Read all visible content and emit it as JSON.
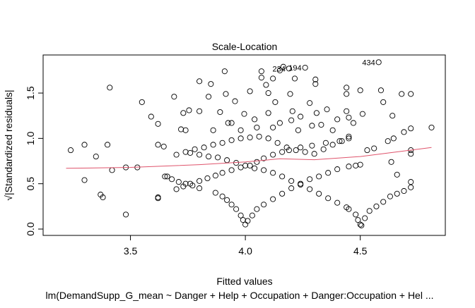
{
  "chart_data": {
    "type": "scatter",
    "title": "Scale-Location",
    "xlabel": "Fitted values",
    "ylabel": "√|Standardized residuals|",
    "subtitle": "lm(DemandSupp_G_mean ~ Danger + Help + Occupation + Danger:Occupation + Hel ...",
    "xlim": [
      3.12,
      4.87
    ],
    "ylim": [
      -0.07,
      1.92
    ],
    "xticks": [
      {
        "value": 3.5,
        "label": "3.5"
      },
      {
        "value": 4.0,
        "label": "4.0"
      },
      {
        "value": 4.5,
        "label": "4.5"
      }
    ],
    "yticks": [
      {
        "value": 0.0,
        "label": "0.0"
      },
      {
        "value": 0.5,
        "label": "0.5"
      },
      {
        "value": 1.0,
        "label": "1.0"
      },
      {
        "value": 1.5,
        "label": "1.5"
      }
    ],
    "grid": false,
    "smooth_color": "#DF536B",
    "smooth_line": [
      [
        3.22,
        0.67
      ],
      [
        3.5,
        0.68
      ],
      [
        3.8,
        0.71
      ],
      [
        4.0,
        0.74
      ],
      [
        4.15,
        0.775
      ],
      [
        4.3,
        0.765
      ],
      [
        4.5,
        0.8
      ],
      [
        4.81,
        0.9
      ]
    ],
    "labeled_points": [
      {
        "label": "234",
        "x": 4.19,
        "y": 1.77
      },
      {
        "label": "194",
        "x": 4.26,
        "y": 1.78
      },
      {
        "label": "434",
        "x": 4.58,
        "y": 1.84
      }
    ],
    "points": [
      [
        3.24,
        0.87
      ],
      [
        3.3,
        0.93
      ],
      [
        3.3,
        0.54
      ],
      [
        3.35,
        0.8
      ],
      [
        3.37,
        0.38
      ],
      [
        3.38,
        0.35
      ],
      [
        3.4,
        0.93
      ],
      [
        3.41,
        1.56
      ],
      [
        3.42,
        0.65
      ],
      [
        3.48,
        0.68
      ],
      [
        3.48,
        0.16
      ],
      [
        3.53,
        0.68
      ],
      [
        3.55,
        1.4
      ],
      [
        3.59,
        1.24
      ],
      [
        3.62,
        0.93
      ],
      [
        3.62,
        1.16
      ],
      [
        3.62,
        0.35
      ],
      [
        3.62,
        0.34
      ],
      [
        3.645,
        0.91
      ],
      [
        3.66,
        0.58
      ],
      [
        3.72,
        1.1
      ],
      [
        3.74,
        1.09
      ],
      [
        3.69,
        1.46
      ],
      [
        3.73,
        1.28
      ],
      [
        3.755,
        1.31
      ],
      [
        3.8,
        1.63
      ],
      [
        3.8,
        1.3
      ],
      [
        3.84,
        1.46
      ],
      [
        3.85,
        1.6
      ],
      [
        3.89,
        1.29
      ],
      [
        3.91,
        1.74
      ],
      [
        3.915,
        1.49
      ],
      [
        3.925,
        1.17
      ],
      [
        3.955,
        1.41
      ],
      [
        3.995,
        1.27
      ],
      [
        4.02,
        1.52
      ],
      [
        4.07,
        1.74
      ],
      [
        4.07,
        1.67
      ],
      [
        4.09,
        1.59
      ],
      [
        4.1,
        1.5
      ],
      [
        4.12,
        1.66
      ],
      [
        4.1,
        1.28
      ],
      [
        4.13,
        1.4
      ],
      [
        4.15,
        1.75
      ],
      [
        4.165,
        1.79
      ],
      [
        4.195,
        1.49
      ],
      [
        4.205,
        1.3
      ],
      [
        4.215,
        1.66
      ],
      [
        4.24,
        1.24
      ],
      [
        4.28,
        1.39
      ],
      [
        4.305,
        1.65
      ],
      [
        4.305,
        1.6
      ],
      [
        4.31,
        1.28
      ],
      [
        4.355,
        1.32
      ],
      [
        4.44,
        1.56
      ],
      [
        4.44,
        1.49
      ],
      [
        4.44,
        1.3
      ],
      [
        4.5,
        1.53
      ],
      [
        4.51,
        1.27
      ],
      [
        4.59,
        1.53
      ],
      [
        4.6,
        1.4
      ],
      [
        4.64,
        1.25
      ],
      [
        4.68,
        1.49
      ],
      [
        4.72,
        1.49
      ],
      [
        4.72,
        1.11
      ],
      [
        4.69,
        1.07
      ],
      [
        4.81,
        1.12
      ],
      [
        4.62,
        0.97
      ],
      [
        4.645,
        1.0
      ],
      [
        4.635,
        0.74
      ],
      [
        4.66,
        0.6
      ],
      [
        4.72,
        0.87
      ],
      [
        4.72,
        0.83
      ],
      [
        4.53,
        0.87
      ],
      [
        4.56,
        0.89
      ],
      [
        4.15,
        1.17
      ],
      [
        4.04,
        1.21
      ],
      [
        3.98,
        1.09
      ],
      [
        3.86,
        1.09
      ],
      [
        4.23,
        1.09
      ],
      [
        4.38,
        1.09
      ],
      [
        4.47,
        1.17
      ],
      [
        4.4,
        1.21
      ],
      [
        4.29,
        1.14
      ],
      [
        3.94,
        1.17
      ],
      [
        4.12,
        1.12
      ],
      [
        4.33,
        1.15
      ],
      [
        4.45,
        1.23
      ],
      [
        4.2,
        1.2
      ],
      [
        4.05,
        1.12
      ],
      [
        3.7,
        0.82
      ],
      [
        3.74,
        0.85
      ],
      [
        3.78,
        0.88
      ],
      [
        3.82,
        0.9
      ],
      [
        3.86,
        0.93
      ],
      [
        3.9,
        0.95
      ],
      [
        3.94,
        0.98
      ],
      [
        3.98,
        1.0
      ],
      [
        4.02,
        1.01
      ],
      [
        4.06,
        1.02
      ],
      [
        4.1,
        1.0
      ],
      [
        4.14,
        0.95
      ],
      [
        4.18,
        0.9
      ],
      [
        4.22,
        0.87
      ],
      [
        4.26,
        0.85
      ],
      [
        4.3,
        0.83
      ],
      [
        4.34,
        0.88
      ],
      [
        4.38,
        0.93
      ],
      [
        4.42,
        0.97
      ],
      [
        4.45,
        1.0
      ],
      [
        3.76,
        0.84
      ],
      [
        3.8,
        0.82
      ],
      [
        3.84,
        0.8
      ],
      [
        3.88,
        0.79
      ],
      [
        3.92,
        0.76
      ],
      [
        3.96,
        0.73
      ],
      [
        4.0,
        0.7
      ],
      [
        4.04,
        0.67
      ],
      [
        4.08,
        0.65
      ],
      [
        4.12,
        0.62
      ],
      [
        4.16,
        0.58
      ],
      [
        4.2,
        0.53
      ],
      [
        4.24,
        0.49
      ],
      [
        4.28,
        0.44
      ],
      [
        4.32,
        0.39
      ],
      [
        4.36,
        0.34
      ],
      [
        4.4,
        0.29
      ],
      [
        4.44,
        0.24
      ],
      [
        4.45,
        0.22
      ],
      [
        3.65,
        0.58
      ],
      [
        3.68,
        0.55
      ],
      [
        3.71,
        0.52
      ],
      [
        3.74,
        0.5
      ],
      [
        3.77,
        0.48
      ],
      [
        3.8,
        0.45
      ],
      [
        3.7,
        0.44
      ],
      [
        3.73,
        0.47
      ],
      [
        3.76,
        0.5
      ],
      [
        3.8,
        0.53
      ],
      [
        3.835,
        0.56
      ],
      [
        3.87,
        0.59
      ],
      [
        3.9,
        0.62
      ],
      [
        3.94,
        0.65
      ],
      [
        3.98,
        0.68
      ],
      [
        4.02,
        0.7
      ],
      [
        4.05,
        0.74
      ],
      [
        4.08,
        0.78
      ],
      [
        4.12,
        0.82
      ],
      [
        4.16,
        0.85
      ],
      [
        4.19,
        0.87
      ],
      [
        4.24,
        0.9
      ],
      [
        4.29,
        0.92
      ],
      [
        4.35,
        0.95
      ],
      [
        4.41,
        0.97
      ],
      [
        4.45,
        1.02
      ],
      [
        3.87,
        0.4
      ],
      [
        3.9,
        0.36
      ],
      [
        3.92,
        0.32
      ],
      [
        3.94,
        0.27
      ],
      [
        3.96,
        0.22
      ],
      [
        3.98,
        0.15
      ],
      [
        3.99,
        0.1
      ],
      [
        4.0,
        0.05
      ],
      [
        4.01,
        0.09
      ],
      [
        4.03,
        0.15
      ],
      [
        4.05,
        0.22
      ],
      [
        4.08,
        0.27
      ],
      [
        4.12,
        0.33
      ],
      [
        4.16,
        0.39
      ],
      [
        4.2,
        0.45
      ],
      [
        4.24,
        0.5
      ],
      [
        4.28,
        0.55
      ],
      [
        4.32,
        0.58
      ],
      [
        4.36,
        0.62
      ],
      [
        4.4,
        0.66
      ],
      [
        4.45,
        0.69
      ],
      [
        4.48,
        0.7
      ],
      [
        4.5,
        0.71
      ],
      [
        4.48,
        0.16
      ],
      [
        4.49,
        0.1
      ],
      [
        4.5,
        0.05
      ],
      [
        4.505,
        0.04
      ],
      [
        4.52,
        0.12
      ],
      [
        4.54,
        0.2
      ],
      [
        4.57,
        0.25
      ],
      [
        4.6,
        0.3
      ],
      [
        4.63,
        0.36
      ],
      [
        4.66,
        0.39
      ],
      [
        4.69,
        0.42
      ],
      [
        4.72,
        0.46
      ],
      [
        4.72,
        0.52
      ]
    ]
  }
}
